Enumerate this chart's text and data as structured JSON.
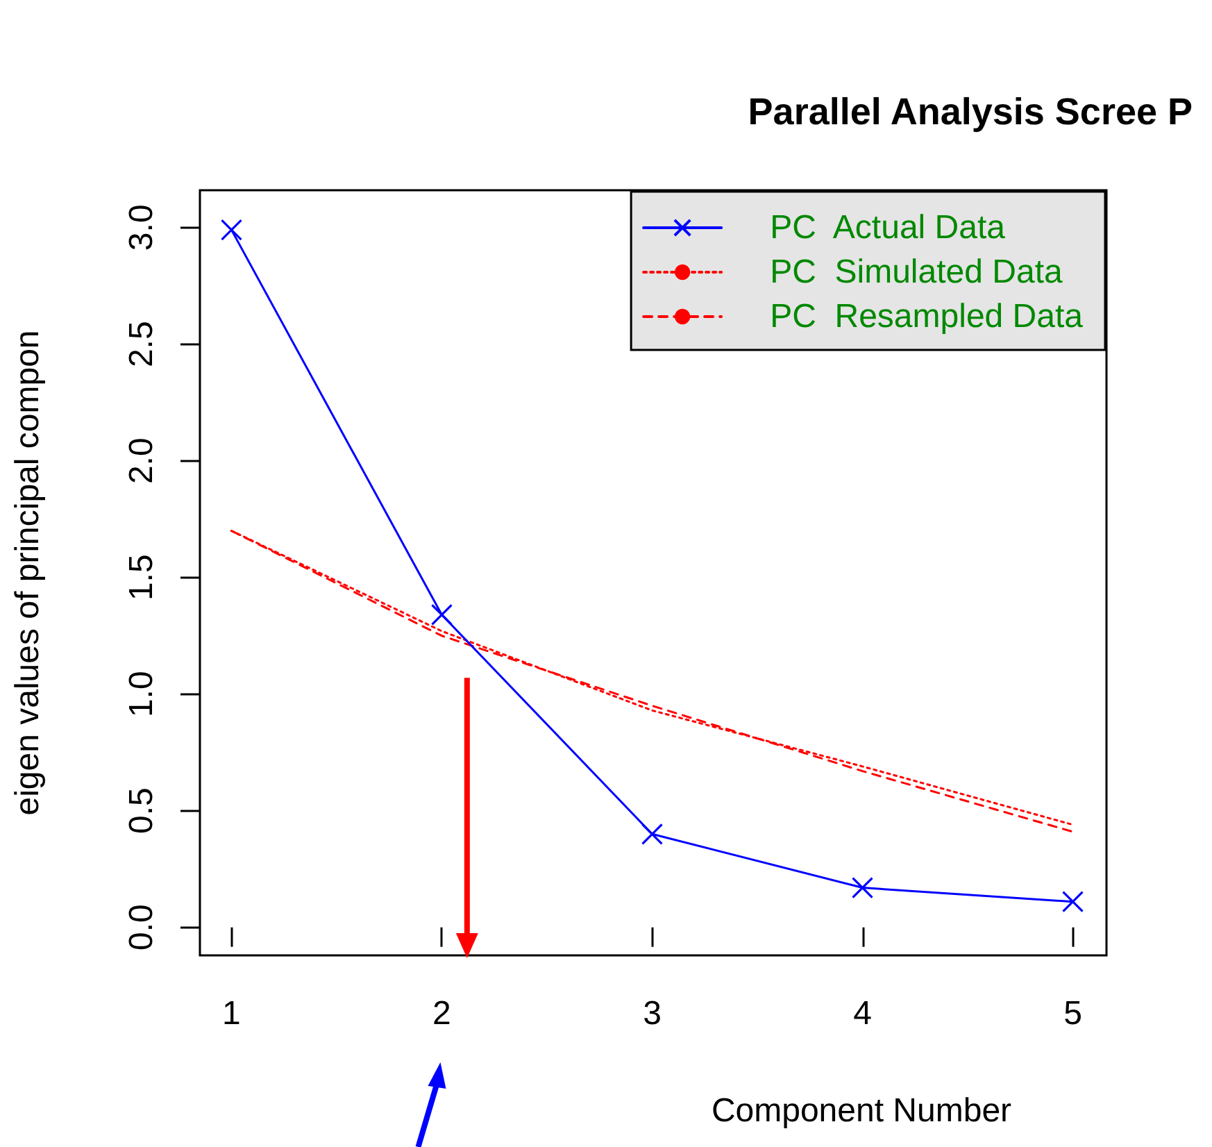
{
  "chart_data": {
    "type": "line",
    "title": "Parallel Analysis Scree P",
    "xlabel": "Component Number",
    "ylabel": "eigen values of principal compon",
    "x": [
      1,
      2,
      3,
      4,
      5
    ],
    "series": [
      {
        "name": "PC  Actual Data",
        "color": "#0000ff",
        "values": [
          2.99,
          1.34,
          0.4,
          0.17,
          0.11
        ],
        "marker": "cross",
        "line_style": "solid"
      },
      {
        "name": "PC  Simulated Data",
        "color": "#ff0000",
        "values": [
          1.7,
          1.27,
          0.93,
          0.69,
          0.44
        ],
        "marker": "none",
        "line_style": "dotted"
      },
      {
        "name": "PC  Resampled Data",
        "color": "#ff0000",
        "values": [
          1.7,
          1.25,
          0.95,
          0.67,
          0.41
        ],
        "marker": "none",
        "line_style": "dashed"
      }
    ],
    "xlim": [
      0.85,
      5.16
    ],
    "xticks": [
      1,
      2,
      3,
      4,
      5
    ],
    "ylim": [
      -0.12,
      3.16
    ],
    "yticks": [
      {
        "value": 0,
        "label": "0.0"
      },
      {
        "value": 0.5,
        "label": "0.5"
      },
      {
        "value": 1,
        "label": "1.0"
      },
      {
        "value": 1.5,
        "label": "1.5"
      },
      {
        "value": 2,
        "label": "2.0"
      },
      {
        "value": 2.5,
        "label": "2.5"
      },
      {
        "value": 3,
        "label": "3.0"
      }
    ],
    "legend": "top right",
    "grid": false
  }
}
